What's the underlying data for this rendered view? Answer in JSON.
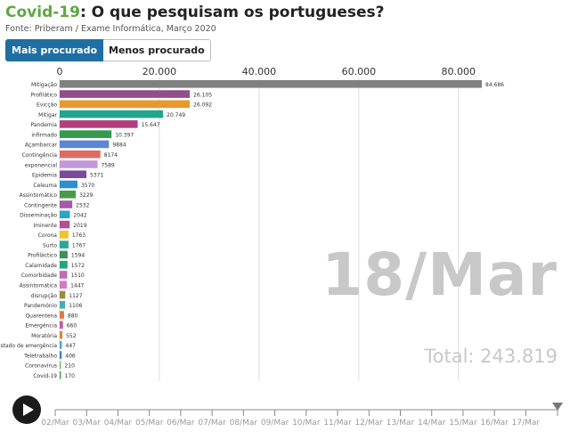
{
  "header": {
    "title_highlight": "Covid-19",
    "title_rest": ": O que pesquisam os portugueses?",
    "source": "Fonte: Priberam / Exame Informática, Março 2020"
  },
  "tabs": [
    {
      "label": "Mais procurado",
      "active": true
    },
    {
      "label": "Menos procurado",
      "active": false
    }
  ],
  "current_date": "18/Mar",
  "total": "Total: 243.819",
  "timeline": {
    "labels": [
      "02/Mar",
      "03/Mar",
      "04/Mar",
      "05/Mar",
      "06/Mar",
      "07/Mar",
      "08/Mar",
      "09/Mar",
      "10/Mar",
      "11/Mar",
      "12/Mar",
      "13/Mar",
      "14/Mar",
      "15/Mar",
      "16/Mar",
      "17/Mar"
    ]
  },
  "chart_data": {
    "type": "bar",
    "orientation": "horizontal",
    "xlim": [
      0,
      87000
    ],
    "ticks": [
      0,
      20000,
      40000,
      60000,
      80000
    ],
    "tick_labels": [
      "0",
      "20.000",
      "40.000",
      "60.000",
      "80.000"
    ],
    "bars": [
      {
        "label": "Mitigação",
        "value": 84686,
        "value_label": "84.686",
        "color": "#808080"
      },
      {
        "label": "Profilático",
        "value": 26105,
        "value_label": "26.105",
        "color": "#8e4f8c"
      },
      {
        "label": "Evicção",
        "value": 26092,
        "value_label": "26.092",
        "color": "#e8992e"
      },
      {
        "label": "Mitigar",
        "value": 20749,
        "value_label": "20.749",
        "color": "#22a68d"
      },
      {
        "label": "Pandemia",
        "value": 15647,
        "value_label": "15.647",
        "color": "#b0417e"
      },
      {
        "label": "infirmado",
        "value": 10397,
        "value_label": "10.397",
        "color": "#359a4e"
      },
      {
        "label": "Açambarcar",
        "value": 9884,
        "value_label": "9884",
        "color": "#5b86d6"
      },
      {
        "label": "Contingência",
        "value": 8174,
        "value_label": "8174",
        "color": "#de6b62"
      },
      {
        "label": "exponencial",
        "value": 7589,
        "value_label": "7589",
        "color": "#c198da"
      },
      {
        "label": "Epidemia",
        "value": 5371,
        "value_label": "5371",
        "color": "#7a4a9e"
      },
      {
        "label": "Celeuma",
        "value": 3570,
        "value_label": "3570",
        "color": "#2b8fd1"
      },
      {
        "label": "Assintomático",
        "value": 3229,
        "value_label": "3229",
        "color": "#4b9a4b"
      },
      {
        "label": "Contingente",
        "value": 2532,
        "value_label": "2532",
        "color": "#a35aa8"
      },
      {
        "label": "Disseminação",
        "value": 2042,
        "value_label": "2042",
        "color": "#2ca3c9"
      },
      {
        "label": "Iminente",
        "value": 2019,
        "value_label": "2019",
        "color": "#b5508f"
      },
      {
        "label": "Corona",
        "value": 1763,
        "value_label": "1763",
        "color": "#f2c12e"
      },
      {
        "label": "Surto",
        "value": 1767,
        "value_label": "1767",
        "color": "#2aa89a"
      },
      {
        "label": "Profiláctico",
        "value": 1594,
        "value_label": "1594",
        "color": "#3e8f5e"
      },
      {
        "label": "Calamidade",
        "value": 1572,
        "value_label": "1572",
        "color": "#26a37c"
      },
      {
        "label": "Comorbidade",
        "value": 1510,
        "value_label": "1510",
        "color": "#c06bb5"
      },
      {
        "label": "Assintomática",
        "value": 1447,
        "value_label": "1447",
        "color": "#d27bc4"
      },
      {
        "label": "disrupção",
        "value": 1127,
        "value_label": "1127",
        "color": "#9a8c3e"
      },
      {
        "label": "Pandemónio",
        "value": 1106,
        "value_label": "1106",
        "color": "#3fb3b0"
      },
      {
        "label": "Quarentena",
        "value": 880,
        "value_label": "880",
        "color": "#e07a46"
      },
      {
        "label": "Emergência",
        "value": 660,
        "value_label": "660",
        "color": "#c25ba6"
      },
      {
        "label": "Moratória",
        "value": 552,
        "value_label": "552",
        "color": "#d4883a"
      },
      {
        "label": "stado de emergência",
        "value": 447,
        "value_label": "447",
        "color": "#4aa7d8"
      },
      {
        "label": "Teletrabalho",
        "value": 406,
        "value_label": "406",
        "color": "#3a7fc0"
      },
      {
        "label": "Coronavírus",
        "value": 210,
        "value_label": "210",
        "color": "#7bbf6a"
      },
      {
        "label": "Covid-19",
        "value": 170,
        "value_label": "170",
        "color": "#5aa05a"
      }
    ]
  }
}
